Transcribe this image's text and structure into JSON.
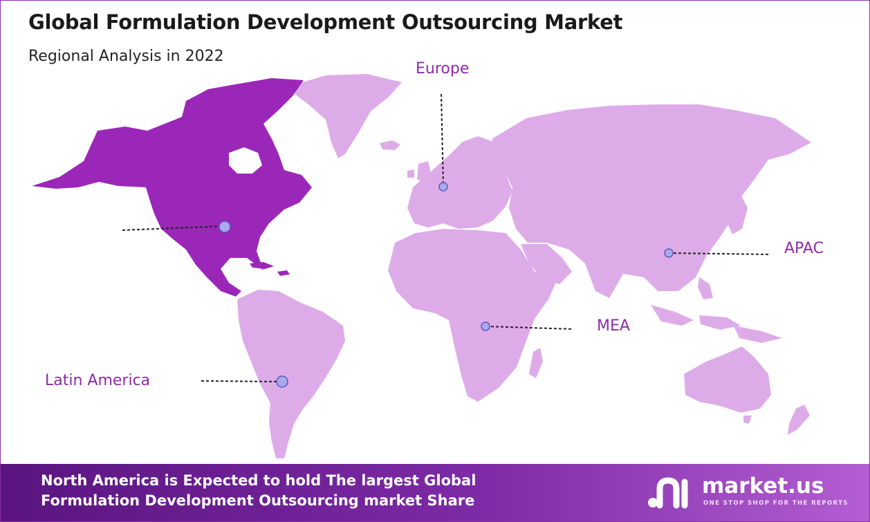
{
  "header": {
    "title": "Global Formulation Development Outsourcing Market",
    "subtitle": "Regional Analysis in 2022"
  },
  "map": {
    "highlight_color": "#9b27b8",
    "base_color": "#deabe9",
    "regions": [
      {
        "id": "north-america",
        "label": "",
        "highlighted": true
      },
      {
        "id": "europe",
        "label": "Europe",
        "highlighted": false
      },
      {
        "id": "apac",
        "label": "APAC",
        "highlighted": false
      },
      {
        "id": "mea",
        "label": "MEA",
        "highlighted": false
      },
      {
        "id": "latin-america",
        "label": "Latin America",
        "highlighted": false
      }
    ]
  },
  "footer": {
    "line1": "North America is Expected to hold The largest Global",
    "line2": "Formulation Development Outsourcing market Share",
    "brand": "market.us",
    "tagline": "ONE STOP SHOP FOR THE REPORTS"
  }
}
